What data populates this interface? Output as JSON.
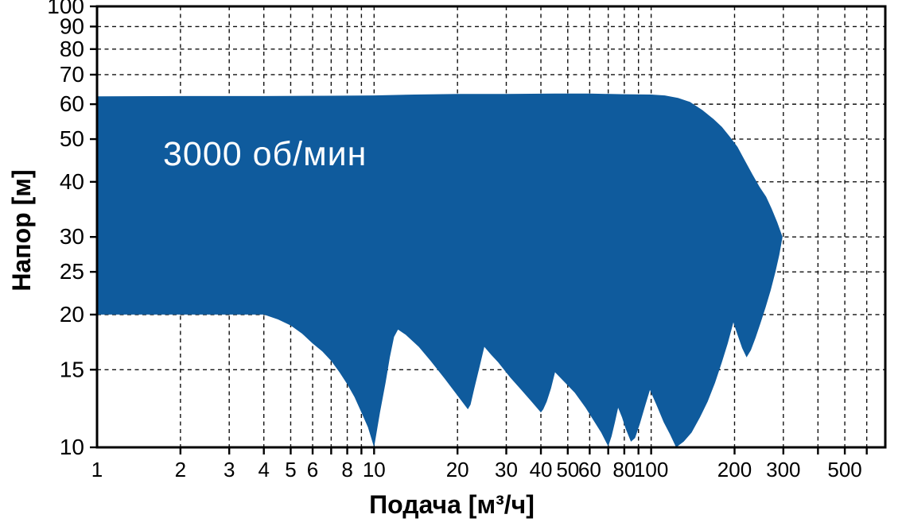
{
  "chart_data": {
    "type": "area",
    "title": "",
    "annotation": "3000 об/мин",
    "xlabel": "Подача [м³/ч]",
    "ylabel": "Напор [м]",
    "log_x": true,
    "log_y": true,
    "xlim": [
      1,
      700
    ],
    "ylim": [
      10,
      100
    ],
    "grid": "dashed",
    "area_color": "#0F5B9D",
    "annotation_color": "#FFFFFF",
    "x_tick_labels": [
      1,
      2,
      3,
      4,
      5,
      6,
      8,
      10,
      20,
      30,
      40,
      50,
      60,
      80,
      100,
      200,
      300,
      500
    ],
    "y_tick_labels": [
      100,
      90,
      80,
      70,
      60,
      50,
      40,
      30,
      25,
      20,
      15,
      10
    ],
    "x_gridlines": [
      2,
      3,
      4,
      5,
      6,
      7,
      8,
      9,
      10,
      20,
      30,
      40,
      50,
      60,
      70,
      80,
      90,
      100,
      200,
      300,
      400,
      500,
      600
    ],
    "y_gridlines": [
      15,
      20,
      25,
      30,
      40,
      50,
      60,
      70,
      80,
      90
    ],
    "series": [
      {
        "name": "operating-range-envelope-3000rpm",
        "description": "Closed outline of pump operating range, points as [flow m3/h, head m]",
        "outline": [
          [
            1,
            62.5
          ],
          [
            2,
            62.6
          ],
          [
            4,
            62.6
          ],
          [
            7,
            62.7
          ],
          [
            10,
            62.8
          ],
          [
            14,
            63.1
          ],
          [
            20,
            63.3
          ],
          [
            30,
            63.3
          ],
          [
            45,
            63.4
          ],
          [
            60,
            63.4
          ],
          [
            80,
            63.2
          ],
          [
            100,
            63.1
          ],
          [
            112,
            62.8
          ],
          [
            125,
            62
          ],
          [
            138,
            60.7
          ],
          [
            153,
            58.2
          ],
          [
            168,
            55.5
          ],
          [
            180,
            53.3
          ],
          [
            192,
            50.7
          ],
          [
            205,
            48
          ],
          [
            218,
            44.7
          ],
          [
            232,
            41.6
          ],
          [
            246,
            39
          ],
          [
            260,
            37
          ],
          [
            272,
            34.8
          ],
          [
            285,
            32.4
          ],
          [
            298,
            30
          ],
          [
            290,
            27.3
          ],
          [
            281,
            25
          ],
          [
            270,
            22.7
          ],
          [
            259,
            20.8
          ],
          [
            248,
            19.1
          ],
          [
            238,
            17.7
          ],
          [
            229,
            16.6
          ],
          [
            221,
            16
          ],
          [
            213,
            16.8
          ],
          [
            205,
            18
          ],
          [
            198,
            19.2
          ],
          [
            189,
            17.2
          ],
          [
            180,
            15.6
          ],
          [
            170,
            14
          ],
          [
            160,
            12.7
          ],
          [
            150,
            11.7
          ],
          [
            140,
            10.8
          ],
          [
            131,
            10.3
          ],
          [
            123,
            10
          ],
          [
            117,
            10.7
          ],
          [
            111,
            11.4
          ],
          [
            105,
            12.4
          ],
          [
            99,
            13.5
          ],
          [
            95,
            12.4
          ],
          [
            91,
            11.3
          ],
          [
            87.5,
            10.5
          ],
          [
            84.5,
            10.3
          ],
          [
            81,
            11
          ],
          [
            78.5,
            11.7
          ],
          [
            76,
            12.3
          ],
          [
            74,
            11.4
          ],
          [
            72,
            10.6
          ],
          [
            70,
            10.05
          ],
          [
            66,
            10.8
          ],
          [
            62,
            11.5
          ],
          [
            58,
            12.3
          ],
          [
            53,
            13.3
          ],
          [
            49,
            14
          ],
          [
            45,
            14.8
          ],
          [
            43.5,
            13.6
          ],
          [
            42,
            12.7
          ],
          [
            40.8,
            12.2
          ],
          [
            40,
            12
          ],
          [
            37,
            12.7
          ],
          [
            34,
            13.5
          ],
          [
            31,
            14.4
          ],
          [
            28,
            15.6
          ],
          [
            26.5,
            16.2
          ],
          [
            25,
            16.9
          ],
          [
            24,
            15.2
          ],
          [
            23,
            13.6
          ],
          [
            22.3,
            12.5
          ],
          [
            21.8,
            12.2
          ],
          [
            20,
            13.1
          ],
          [
            18,
            14.3
          ],
          [
            16,
            15.7
          ],
          [
            14.5,
            16.9
          ],
          [
            13,
            18
          ],
          [
            12.2,
            18.5
          ],
          [
            11.8,
            17.8
          ],
          [
            11.4,
            16
          ],
          [
            11,
            14
          ],
          [
            10.5,
            12
          ],
          [
            10,
            10
          ],
          [
            9.5,
            11.1
          ],
          [
            9,
            12
          ],
          [
            8.5,
            13
          ],
          [
            8,
            13.9
          ],
          [
            7.5,
            14.8
          ],
          [
            7,
            15.7
          ],
          [
            6.5,
            16.5
          ],
          [
            6,
            17.2
          ],
          [
            5.5,
            18.1
          ],
          [
            5,
            18.9
          ],
          [
            4.5,
            19.5
          ],
          [
            4,
            20
          ],
          [
            2.5,
            20
          ],
          [
            1,
            20
          ]
        ]
      }
    ]
  }
}
